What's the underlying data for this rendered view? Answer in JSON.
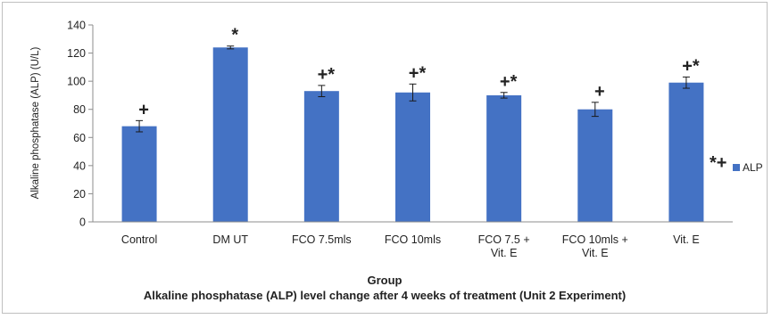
{
  "chart_data": {
    "type": "bar",
    "title": "Alkaline phosphatase  (ALP) level change after 4 weeks of treatment (Unit 2 Experiment)",
    "xlabel": "Group",
    "ylabel": "Alkaline phosphatase (ALP) (U/L)",
    "ylim": [
      0,
      140
    ],
    "yticks": [
      0,
      20,
      40,
      60,
      80,
      100,
      120,
      140
    ],
    "grid": false,
    "legend_position": "right",
    "categories": [
      [
        "Control"
      ],
      [
        "DM UT"
      ],
      [
        "FCO 7.5mls"
      ],
      [
        "FCO 10mls"
      ],
      [
        "FCO 7.5 +",
        "Vit. E"
      ],
      [
        "FCO 10mls +",
        "Vit. E"
      ],
      [
        "Vit. E"
      ]
    ],
    "series": [
      {
        "name": "ALP",
        "color": "#4472c4",
        "values": [
          68,
          124,
          93,
          92,
          90,
          80,
          99
        ],
        "errors": [
          4,
          1,
          4,
          6,
          2,
          5,
          4
        ]
      }
    ],
    "annotations": [
      "+",
      "*",
      "+*",
      "+*",
      "+*",
      "+",
      "+*"
    ],
    "legend_marks": "*+"
  }
}
